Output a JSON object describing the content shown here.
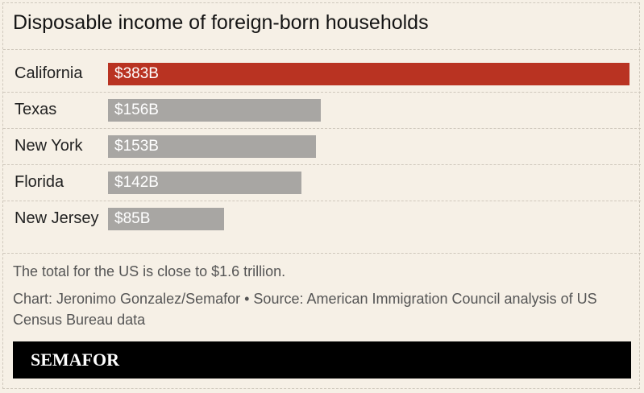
{
  "chart_data": {
    "type": "bar",
    "orientation": "horizontal",
    "title": "Disposable income of foreign-born households",
    "categories": [
      "California",
      "Texas",
      "New York",
      "Florida",
      "New Jersey"
    ],
    "values": [
      383,
      156,
      153,
      142,
      85
    ],
    "value_labels": [
      "$383B",
      "$156B",
      "$153B",
      "$142B",
      "$85B"
    ],
    "unit": "billion USD",
    "xlim": [
      0,
      383
    ],
    "grid": false,
    "legend": "none",
    "colors": {
      "highlight": "#b93322",
      "default": "#a8a6a3"
    },
    "highlight_category": "California"
  },
  "note": "The total for the US is close to $1.6 trillion.",
  "credit": "Chart: Jeronimo Gonzalez/Semafor • Source: American Immigration Council analysis of US Census Bureau data",
  "footer": {
    "logo": "SEMAFOR",
    "background": "#000000"
  }
}
